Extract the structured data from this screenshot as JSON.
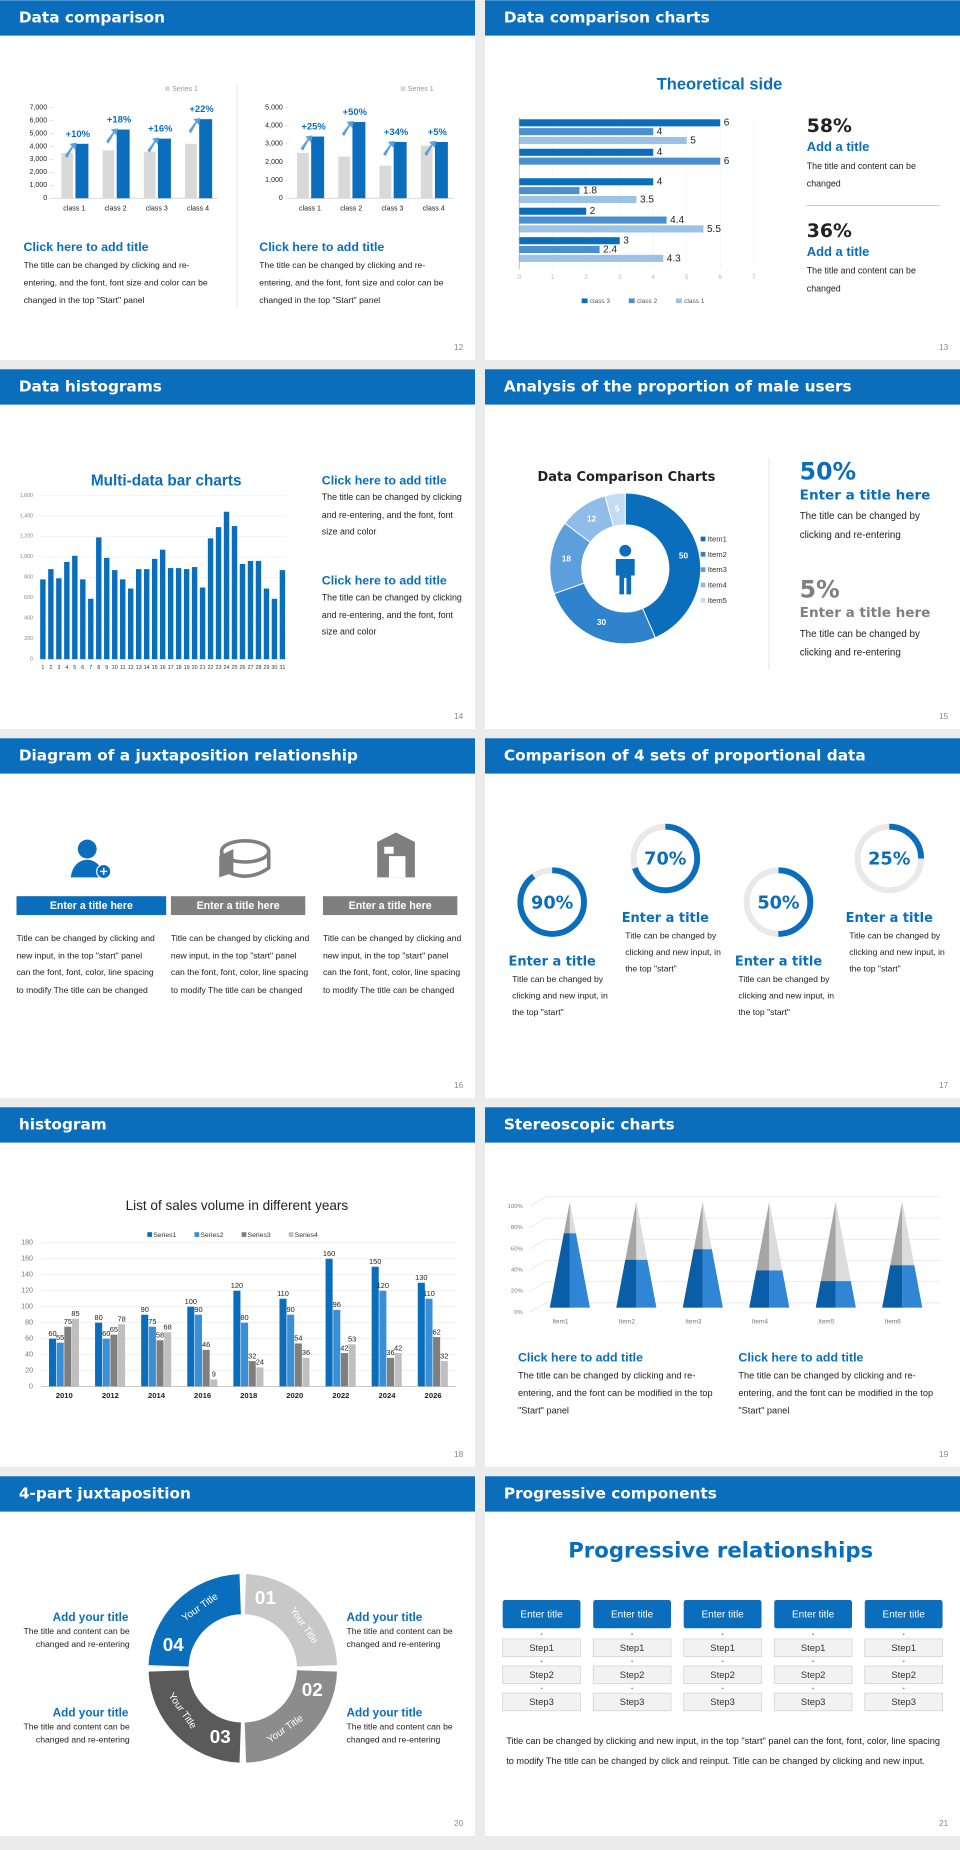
{
  "slides": [
    {
      "title": "Data comparison",
      "page": 12,
      "charts": [
        {
          "type": "bar",
          "categories": [
            "class 1",
            "class 2",
            "class 3",
            "class 4"
          ],
          "series": [
            {
              "name": "Series 1",
              "color": "#d9d9d9",
              "values": [
                3500,
                3700,
                3600,
                4200
              ]
            },
            {
              "color": "#0a6ebd",
              "values": [
                4200,
                5300,
                4600,
                6100
              ]
            }
          ],
          "annotations": [
            "+10%",
            "+18%",
            "+16%",
            "+22%"
          ],
          "ylim": [
            0,
            7000
          ],
          "yticks": [
            0,
            {
              "value": 1000,
              "label": "1,000"
            },
            {
              "value": 2000,
              "label": "2,000"
            },
            {
              "value": 3000,
              "label": "3,000"
            },
            {
              "value": 4000,
              "label": "4,000"
            },
            {
              "value": 5000,
              "label": "5,000"
            },
            {
              "value": 6000,
              "label": "6,000"
            },
            {
              "value": 7000,
              "label": "7,000"
            }
          ]
        },
        {
          "type": "bar",
          "categories": [
            "class 1",
            "class 2",
            "class 3",
            "class 4"
          ],
          "series": [
            {
              "name": "Series 1",
              "color": "#d9d9d9",
              "values": [
                2500,
                2300,
                1800,
                2900
              ]
            },
            {
              "color": "#0a6ebd",
              "values": [
                3400,
                4200,
                3100,
                3100
              ]
            }
          ],
          "annotations": [
            "+25%",
            "+50%",
            "+34%",
            "+5%"
          ],
          "ylim": [
            0,
            5000
          ],
          "yticks": [
            0,
            {
              "value": 1000,
              "label": "1,000"
            },
            {
              "value": 2000,
              "label": "2,000"
            },
            {
              "value": 3000,
              "label": "3,000"
            },
            {
              "value": 4000,
              "label": "4,000"
            },
            {
              "value": 5000,
              "label": "5,000"
            }
          ]
        }
      ],
      "blocks": [
        {
          "heading": "Click here to add title",
          "text": "The title can be changed by clicking and re-entering, and the font, font size and color can be changed in the top \"Start\" panel"
        },
        {
          "heading": "Click here to add title",
          "text": "The title can be changed by clicking and re-entering, and the font, font size and color can be changed in the top \"Start\" panel"
        }
      ]
    },
    {
      "title": "Data comparison charts",
      "page": 13,
      "chart": {
        "type": "hbar",
        "title": "Theoretical side",
        "categories": [
          null,
          null,
          null,
          null,
          null
        ],
        "series": [
          {
            "name": "class 3",
            "color": "#0a6ebd",
            "values": [
              6,
              4,
              4,
              2,
              3
            ]
          },
          {
            "name": "class 2",
            "color": "#4a90d0",
            "values": [
              4,
              6,
              1.8,
              4.4,
              2.4
            ]
          },
          {
            "name": "class 1",
            "color": "#9cc3e6",
            "values": [
              5,
              null,
              3.5,
              5.5,
              4.3
            ]
          }
        ],
        "xlim": [
          0,
          7
        ],
        "xticks": [
          0,
          1,
          2,
          3,
          4,
          5,
          6,
          7
        ]
      },
      "stats": [
        {
          "value": "58%",
          "heading": "Add a title",
          "text": "The title and content can be changed"
        },
        {
          "value": "36%",
          "heading": "Add a title",
          "text": "The title and content can be changed"
        }
      ]
    },
    {
      "title": "Data histograms",
      "page": 14,
      "chart": {
        "type": "bar",
        "title": "Multi-data bar charts",
        "color": "#0a6ebd",
        "categories": [
          "1",
          "2",
          "3",
          "4",
          "5",
          "6",
          "7",
          "8",
          "9",
          "10",
          "11",
          "12",
          "13",
          "14",
          "15",
          "16",
          "17",
          "18",
          "19",
          "20",
          "21",
          "22",
          "23",
          "24",
          "25",
          "26",
          "27",
          "28",
          "29",
          "30",
          "31"
        ],
        "values": [
          780,
          880,
          790,
          950,
          1010,
          780,
          590,
          1190,
          990,
          870,
          780,
          690,
          880,
          880,
          980,
          1070,
          890,
          890,
          880,
          900,
          700,
          1180,
          1290,
          1440,
          1300,
          930,
          960,
          960,
          690,
          590,
          870
        ],
        "ylim": [
          0,
          1600
        ],
        "yticks": [
          0,
          200,
          400,
          600,
          800,
          {
            "value": 1000,
            "label": "1,000"
          },
          {
            "value": 1200,
            "label": "1,200"
          },
          {
            "value": 1400,
            "label": "1,400"
          },
          {
            "value": 1600,
            "label": "1,600"
          }
        ]
      },
      "blocks": [
        {
          "heading": "Click here to add title",
          "text": "The title can be changed by clicking and re-entering, and the font, font size and color"
        },
        {
          "heading": "Click here to add title",
          "text": "The title can be changed by clicking and re-entering, and the font, font size and color"
        }
      ]
    },
    {
      "title": "Analysis of the proportion of male users",
      "page": 15,
      "chart": {
        "type": "donut",
        "title": "Data Comparison Charts",
        "categories": [
          "Item1",
          "Item2",
          "Item3",
          "Item4",
          "Item5"
        ],
        "values": [
          50,
          30,
          18,
          12,
          5
        ],
        "colors": [
          "#0a6ebd",
          "#2f82cc",
          "#5d9fdc",
          "#8fbce8",
          "#c4dcf3"
        ]
      },
      "stats": [
        {
          "value": "50%",
          "heading": "Enter a title here",
          "text": "The title can be changed by clicking and re-entering"
        },
        {
          "value": "5%",
          "heading": "Enter a title here",
          "text": "The title can be changed by clicking and re-entering"
        }
      ]
    },
    {
      "title": "Diagram of a juxtaposition relationship",
      "page": 16,
      "items": [
        {
          "heading": "Enter a title here",
          "text": "Title can be changed by clicking and new input, in the top \"start\" panel can the font, font, color, line spacing to modify The title can be changed"
        },
        {
          "heading": "Enter a title here",
          "text": "Title can be changed by clicking and new input, in the top \"start\" panel can the font, font, color, line spacing to modify The title can be changed"
        },
        {
          "heading": "Enter a title here",
          "text": "Title can be changed by clicking and new input, in the top \"start\" panel can the font, font, color, line spacing to modify The title can be changed"
        }
      ]
    },
    {
      "title": "Comparison of 4 sets of proportional data",
      "page": 17,
      "chart": {
        "type": "gauge",
        "color": "#0a6ebd",
        "values": [
          90,
          70,
          50,
          25
        ],
        "value_labels": [
          "90%",
          "70%",
          "50%",
          "25%"
        ]
      },
      "items": [
        {
          "heading": "Enter a title",
          "text": "Title can be changed by clicking and new input, in the top \"start\""
        },
        {
          "heading": "Enter a title",
          "text": "Title can be changed by clicking and new input, in the top \"start\""
        },
        {
          "heading": "Enter a title",
          "text": "Title can be changed by clicking and new input, in the top \"start\""
        },
        {
          "heading": "Enter a title",
          "text": "Title can be changed by clicking and new input, in the top \"start\""
        }
      ]
    },
    {
      "title": "histogram",
      "page": 18,
      "chart": {
        "type": "bar",
        "title": "List of sales volume in different years",
        "categories": [
          "2010",
          "2012",
          "2014",
          "2016",
          "2018",
          "2020",
          "2022",
          "2024",
          "2026"
        ],
        "series": [
          {
            "name": "Series1",
            "color": "#0a6ebd",
            "values": [
              60,
              80,
              90,
              100,
              120,
              110,
              160,
              150,
              130
            ]
          },
          {
            "name": "Series2",
            "color": "#3a8fd6",
            "values": [
              55,
              60,
              75,
              90,
              80,
              90,
              96,
              120,
              110
            ]
          },
          {
            "name": "Series3",
            "color": "#7f7f7f",
            "values": [
              75,
              65,
              58,
              46,
              32,
              54,
              42,
              36,
              62
            ]
          },
          {
            "name": "Series4",
            "color": "#bfbfbf",
            "values": [
              85,
              78,
              68,
              9,
              24,
              36,
              53,
              42,
              32
            ]
          }
        ],
        "ylim": [
          0,
          180
        ],
        "yticks": [
          0,
          20,
          40,
          60,
          80,
          100,
          120,
          140,
          160,
          180
        ],
        "grid": true
      }
    },
    {
      "title": "Stereoscopic charts",
      "page": 19,
      "chart": {
        "type": "cone",
        "categories": [
          "Item1",
          "Item2",
          "Item3",
          "Item4",
          "Item5",
          "Item6"
        ],
        "values": [
          70,
          45,
          55,
          35,
          25,
          40
        ],
        "colors": [
          "#0a5ea8",
          "#2e86d4"
        ],
        "ylim": [
          0,
          100
        ],
        "yticks": [
          {
            "value": 0,
            "label": "0%"
          },
          {
            "value": 20,
            "label": "20%"
          },
          {
            "value": 40,
            "label": "40%"
          },
          {
            "value": 60,
            "label": "60%"
          },
          {
            "value": 80,
            "label": "80%"
          },
          {
            "value": 100,
            "label": "100%"
          }
        ]
      },
      "blocks": [
        {
          "heading": "Click here to add title",
          "text": "The title can be changed by clicking and re-entering, and the font can be modified in the top \"Start\" panel"
        },
        {
          "heading": "Click here to add title",
          "text": "The title can be changed by clicking and re-entering, and the font can be modified in the top \"Start\" panel"
        }
      ]
    },
    {
      "title": "4-part juxtaposition",
      "page": 20,
      "segments": [
        {
          "number": "01",
          "label": "Your Title",
          "color": "#c8c8c8"
        },
        {
          "number": "02",
          "label": "Your Title",
          "color": "#8c8c8c"
        },
        {
          "number": "03",
          "label": "Your Title",
          "color": "#5a5a5a"
        },
        {
          "number": "04",
          "label": "Your Title",
          "color": "#0a6ebd"
        }
      ],
      "items": [
        {
          "heading": "Add your title",
          "text": "The title and content can be changed and re-entering"
        },
        {
          "heading": "Add your title",
          "text": "The title and content can be changed and re-entering"
        },
        {
          "heading": "Add your title",
          "text": "The title and content can be changed and re-entering"
        },
        {
          "heading": "Add your title",
          "text": "The title and content can be changed and re-entering"
        }
      ]
    },
    {
      "title": "Progressive components",
      "page": 21,
      "heading": "Progressive relationships",
      "columns": [
        {
          "title": "Enter title",
          "steps": [
            "Step1",
            "Step2",
            "Step3"
          ]
        },
        {
          "title": "Enter title",
          "steps": [
            "Step1",
            "Step2",
            "Step3"
          ]
        },
        {
          "title": "Enter title",
          "steps": [
            "Step1",
            "Step2",
            "Step3"
          ]
        },
        {
          "title": "Enter title",
          "steps": [
            "Step1",
            "Step2",
            "Step3"
          ]
        },
        {
          "title": "Enter title",
          "steps": [
            "Step1",
            "Step2",
            "Step3"
          ]
        }
      ],
      "text": "Title can be changed by clicking and new input, in the top \"start\" panel can the font, font, color, line spacing to modify The title can be changed by click and reinput. Title can be changed by clicking and new input."
    }
  ]
}
